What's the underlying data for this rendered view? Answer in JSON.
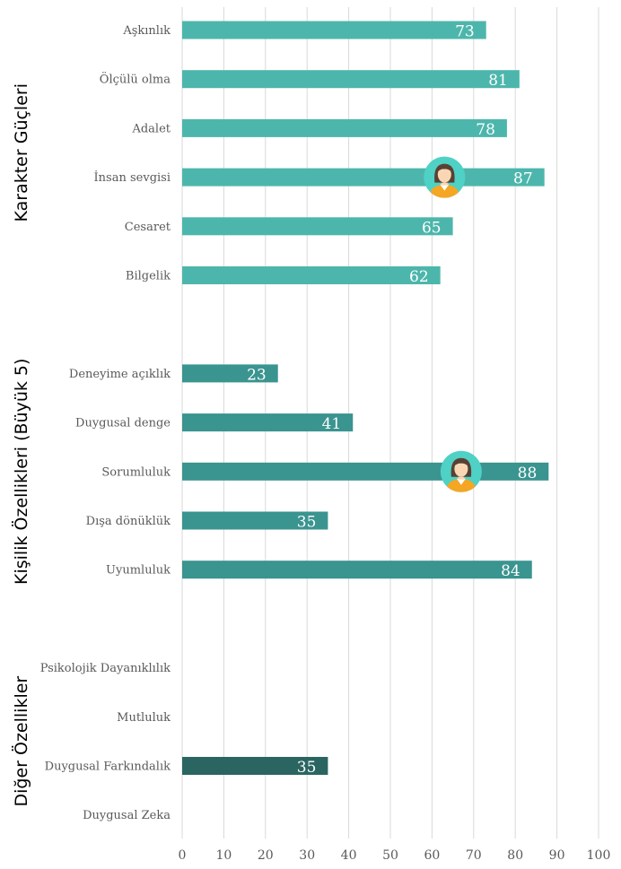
{
  "chart_data": {
    "type": "bar",
    "orientation": "horizontal",
    "xlim": [
      0,
      100
    ],
    "x_ticks": [
      "0",
      "10",
      "20",
      "30",
      "40",
      "50",
      "60",
      "70",
      "80",
      "90",
      "100"
    ],
    "grid": true,
    "groups": [
      {
        "label": "Karakter Güçleri",
        "color": "#4DB6AC",
        "bars": [
          {
            "category": "Aşkınlık",
            "value": 73
          },
          {
            "category": "Ölçülü olma",
            "value": 81
          },
          {
            "category": "Adalet",
            "value": 78
          },
          {
            "category": "İnsan sevgisi",
            "value": 87,
            "marker": "person-avatar-icon",
            "marker_value": 63
          },
          {
            "category": "Cesaret",
            "value": 65
          },
          {
            "category": "Bilgelik",
            "value": 62
          }
        ]
      },
      {
        "label": "Kişilik Özellikleri (Büyük 5)",
        "color": "#3A9490",
        "bars": [
          {
            "category": "Deneyime açıklık",
            "value": 23
          },
          {
            "category": "Duygusal denge",
            "value": 41
          },
          {
            "category": "Sorumluluk",
            "value": 88,
            "marker": "person-avatar-icon",
            "marker_value": 67
          },
          {
            "category": "Dışa dönüklük",
            "value": 35
          },
          {
            "category": "Uyumluluk",
            "value": 84
          }
        ]
      },
      {
        "label": "Diğer Özellikler",
        "color": "#2A6561",
        "bars": [
          {
            "category": "Psikolojik Dayanıklılık",
            "value": null
          },
          {
            "category": "Mutluluk",
            "value": null
          },
          {
            "category": "Duygusal Farkındalık",
            "value": 35
          },
          {
            "category": "Duygusal Zeka",
            "value": null
          }
        ]
      }
    ],
    "colors": {
      "avatar_bg": "#4FD1C5",
      "avatar_skin": "#F9D7B5",
      "avatar_hair": "#5A4034",
      "avatar_shirt": "#F5A623",
      "grid": "#D9D9D9"
    }
  }
}
